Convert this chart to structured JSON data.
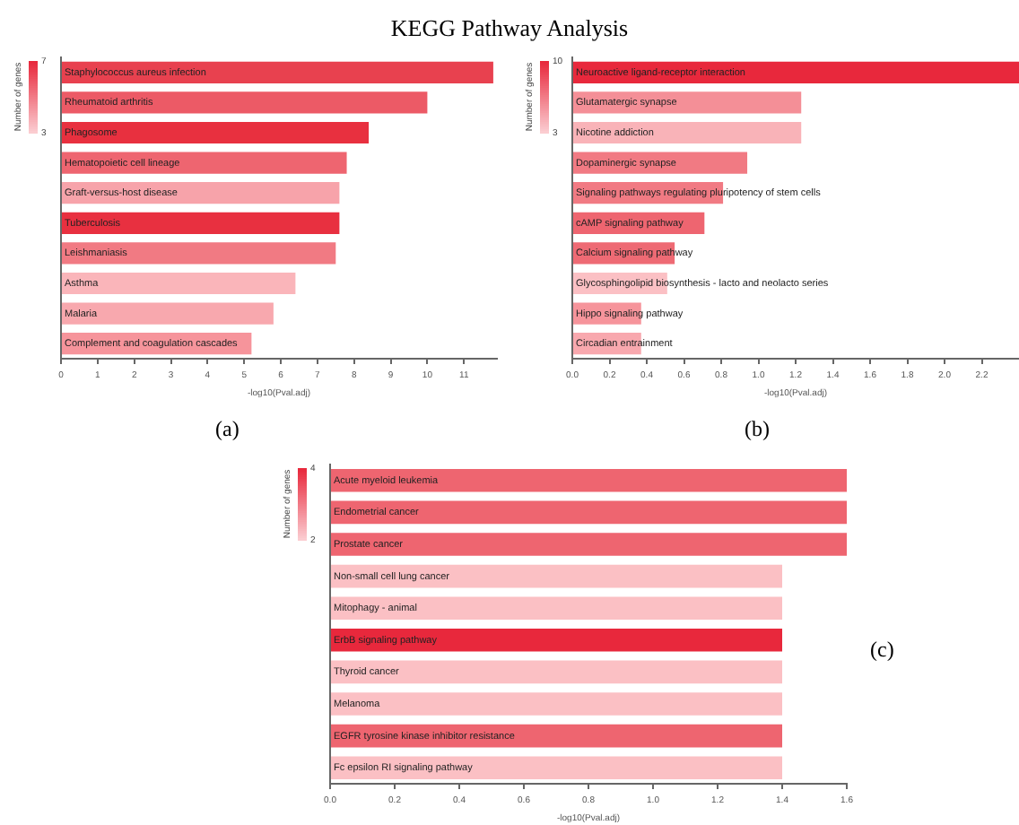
{
  "chart_data": [
    {
      "type": "bar",
      "orientation": "horizontal",
      "title": "KEGG Pathway Analysis",
      "xlabel": "-log10(Pval.adj)",
      "clabel": "Number of genes",
      "clim": [
        3,
        7
      ],
      "cticks": [
        3,
        7
      ],
      "annotations": [
        "(a)"
      ],
      "categories": [
        "Staphylococcus aureus infection",
        "Rheumatoid arthritis",
        "Phagosome",
        "Hematopoietic cell lineage",
        "Graft-versus-host disease",
        "Tuberculosis",
        "Leishmaniasis",
        "Asthma",
        "Malaria",
        "Complement and coagulation cascades"
      ],
      "values": [
        11.8,
        10,
        8.4,
        7.8,
        7.6,
        7.6,
        7.5,
        6.4,
        5.8,
        5.2
      ],
      "colors": [
        "#e8414f",
        "#ec5a66",
        "#e8303f",
        "#ee6570",
        "#f7a3aa",
        "#e83040",
        "#f17a83",
        "#fab5ba",
        "#f8a8ae",
        "#f6949b"
      ],
      "xlim": [
        0,
        11.9
      ],
      "xticks": [
        0,
        1,
        2,
        3,
        4,
        5,
        6,
        7,
        8,
        9,
        10,
        11
      ]
    },
    {
      "type": "bar",
      "orientation": "horizontal",
      "xlabel": "-log10(Pval.adj)",
      "clabel": "Number of genes",
      "clim": [
        3,
        10
      ],
      "cticks": [
        3,
        10
      ],
      "annotations": [
        "(b)"
      ],
      "categories": [
        "Neuroactive ligand-receptor interaction",
        "Glutamatergic synapse",
        "Nicotine addiction",
        "Dopaminergic synapse",
        "Signaling pathways regulating pluripotency of stem cells",
        "cAMP signaling pathway",
        "Calcium signaling pathway",
        "Glycosphingolipid biosynthesis - lacto and neolacto series",
        "Hippo signaling pathway",
        "Circadian entrainment"
      ],
      "values": [
        2.4,
        1.23,
        1.23,
        0.94,
        0.81,
        0.71,
        0.55,
        0.51,
        0.37,
        0.37
      ],
      "colors": [
        "#e8283c",
        "#f48f97",
        "#f9b3b8",
        "#f17a83",
        "#f17a83",
        "#ee6570",
        "#ee6a74",
        "#fbc0c4",
        "#f6949b",
        "#f8a8ae"
      ],
      "xlim": [
        0,
        2.4
      ],
      "xticks": [
        {
          "value": 0,
          "label": "0.0"
        },
        {
          "value": 0.2,
          "label": "0.2"
        },
        {
          "value": 0.4,
          "label": "0.4"
        },
        {
          "value": 0.6,
          "label": "0.6"
        },
        {
          "value": 0.8,
          "label": "0.8"
        },
        {
          "value": 1,
          "label": "1.0"
        },
        {
          "value": 1.2,
          "label": "1.2"
        },
        {
          "value": 1.4,
          "label": "1.4"
        },
        {
          "value": 1.6,
          "label": "1.6"
        },
        {
          "value": 1.8,
          "label": "1.8"
        },
        {
          "value": 2,
          "label": "2.0"
        },
        {
          "value": 2.2,
          "label": "2.2"
        }
      ]
    },
    {
      "type": "bar",
      "orientation": "horizontal",
      "xlabel": "-log10(Pval.adj)",
      "clabel": "Number of genes",
      "clim": [
        2,
        4
      ],
      "cticks": [
        2,
        4
      ],
      "annotations": [
        "(c)"
      ],
      "categories": [
        "Acute myeloid leukemia",
        "Endometrial cancer",
        "Prostate cancer",
        "Non-small cell lung cancer",
        "Mitophagy - animal",
        "ErbB signaling pathway",
        "Thyroid cancer",
        "Melanoma",
        "EGFR tyrosine kinase inhibitor resistance",
        "Fc epsilon RI signaling pathway"
      ],
      "values": [
        1.6,
        1.6,
        1.6,
        1.4,
        1.4,
        1.4,
        1.4,
        1.4,
        1.4,
        1.4
      ],
      "colors": [
        "#ee6570",
        "#ee6570",
        "#ee6570",
        "#fbc0c4",
        "#fbc0c4",
        "#e8283c",
        "#fbc0c4",
        "#fbc0c4",
        "#ee6570",
        "#fbc0c4"
      ],
      "xlim": [
        0,
        1.6
      ],
      "xticks": [
        {
          "value": 0,
          "label": "0.0"
        },
        {
          "value": 0.2,
          "label": "0.2"
        },
        {
          "value": 0.4,
          "label": "0.4"
        },
        {
          "value": 0.6,
          "label": "0.6"
        },
        {
          "value": 0.8,
          "label": "0.8"
        },
        {
          "value": 1,
          "label": "1.0"
        },
        {
          "value": 1.2,
          "label": "1.2"
        },
        {
          "value": 1.4,
          "label": "1.4"
        },
        {
          "value": 1.6,
          "label": "1.6"
        }
      ]
    }
  ]
}
